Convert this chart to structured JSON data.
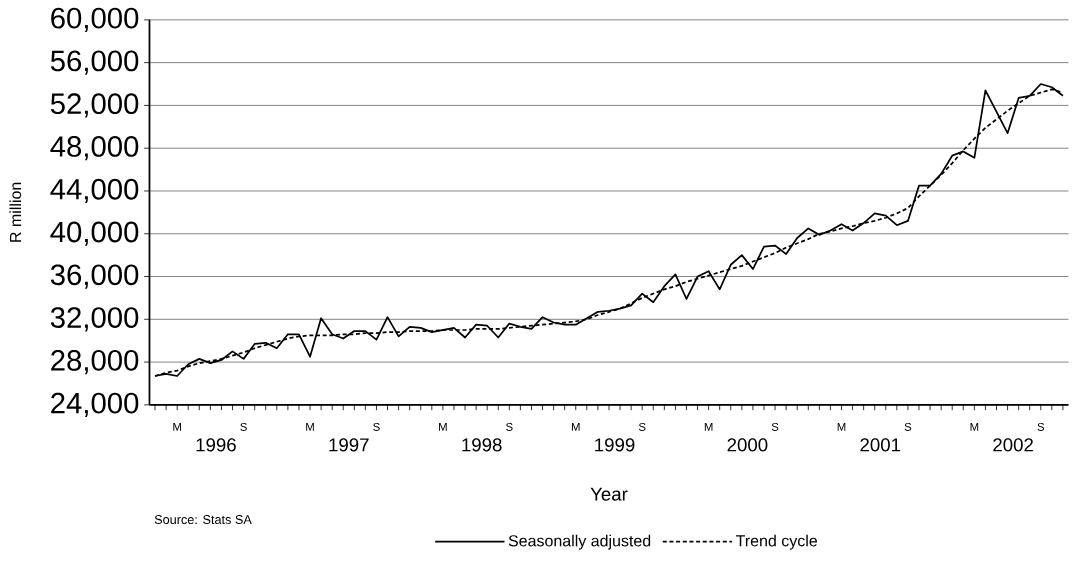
{
  "chart_data": {
    "type": "line",
    "xlabel": "Year",
    "ylabel": "R million",
    "annotations": [
      "1996",
      "1997",
      "1998",
      "1999",
      "2000",
      "2001",
      "2002",
      "Source: Stats SA"
    ],
    "categories": [
      null,
      null,
      "M",
      null,
      null,
      null,
      null,
      null,
      "S",
      null,
      null,
      null,
      null,
      null,
      "M",
      null,
      null,
      null,
      null,
      null,
      "S",
      null,
      null,
      null,
      null,
      null,
      "M",
      null,
      null,
      null,
      null,
      null,
      "S",
      null,
      null,
      null,
      null,
      null,
      "M",
      null,
      null,
      null,
      null,
      null,
      "S",
      null,
      null,
      null,
      null,
      null,
      "M",
      null,
      null,
      null,
      null,
      null,
      "S",
      null,
      null,
      null,
      null,
      null,
      "M",
      null,
      null,
      null,
      null,
      null,
      "S",
      null,
      null,
      null,
      null,
      null,
      "M",
      null,
      null,
      null,
      null,
      null,
      "S",
      null,
      null
    ],
    "series": [
      {
        "name": "Seasonally adjusted",
        "color": "#000000",
        "line_style": "solid",
        "values": [
          26700,
          26900,
          26700,
          27800,
          28300,
          27900,
          28200,
          29000,
          28300,
          29700,
          29800,
          29300,
          30600,
          30600,
          28500,
          32100,
          30600,
          30200,
          30900,
          30900,
          30100,
          32200,
          30400,
          31300,
          31200,
          30800,
          31000,
          31200,
          30300,
          31500,
          31400,
          30300,
          31600,
          31300,
          31100,
          32200,
          31700,
          31500,
          31500,
          32100,
          32700,
          32800,
          33000,
          33300,
          34400,
          33600,
          35100,
          36200,
          33900,
          36000,
          36500,
          34800,
          37100,
          38000,
          36700,
          38800,
          38900,
          38100,
          39600,
          40500,
          39900,
          40300,
          40900,
          40300,
          41000,
          41900,
          41700,
          40800,
          41200,
          44500,
          44500,
          45600,
          47300,
          47700,
          47100,
          53400,
          51400,
          49400,
          52700,
          52900,
          54000,
          53700,
          52900
        ]
      },
      {
        "name": "Trend cycle",
        "color": "#000000",
        "line_style": "dashed",
        "values": [
          26700,
          27000,
          27200,
          27600,
          27900,
          28100,
          28300,
          28600,
          28900,
          29300,
          29600,
          29900,
          30200,
          30400,
          30500,
          30500,
          30500,
          30600,
          30600,
          30700,
          30700,
          30800,
          30800,
          30900,
          30900,
          30900,
          31000,
          31000,
          31000,
          31100,
          31100,
          31100,
          31200,
          31300,
          31400,
          31500,
          31600,
          31700,
          31800,
          32000,
          32400,
          32700,
          33000,
          33500,
          34000,
          34400,
          34800,
          35100,
          35500,
          35800,
          36100,
          36400,
          36700,
          37000,
          37400,
          37800,
          38200,
          38700,
          39100,
          39500,
          40000,
          40200,
          40500,
          40700,
          41000,
          41200,
          41500,
          41900,
          42400,
          43500,
          44500,
          45500,
          46600,
          47800,
          48900,
          49900,
          50700,
          51500,
          52200,
          52900,
          53200,
          53500,
          53200
        ]
      }
    ],
    "ylim": [
      24000,
      60000
    ],
    "yticks": [
      {
        "value": 24000,
        "label": "24,000"
      },
      {
        "value": 28000,
        "label": "28,000"
      },
      {
        "value": 32000,
        "label": "32,000"
      },
      {
        "value": 36000,
        "label": "36,000"
      },
      {
        "value": 40000,
        "label": "40,000"
      },
      {
        "value": 44000,
        "label": "44,000"
      },
      {
        "value": 48000,
        "label": "48,000"
      },
      {
        "value": 52000,
        "label": "52,000"
      },
      {
        "value": 56000,
        "label": "56,000"
      },
      {
        "value": 60000,
        "label": "60,000"
      }
    ],
    "grid": "y",
    "legend": "bottom",
    "marker": "none"
  }
}
